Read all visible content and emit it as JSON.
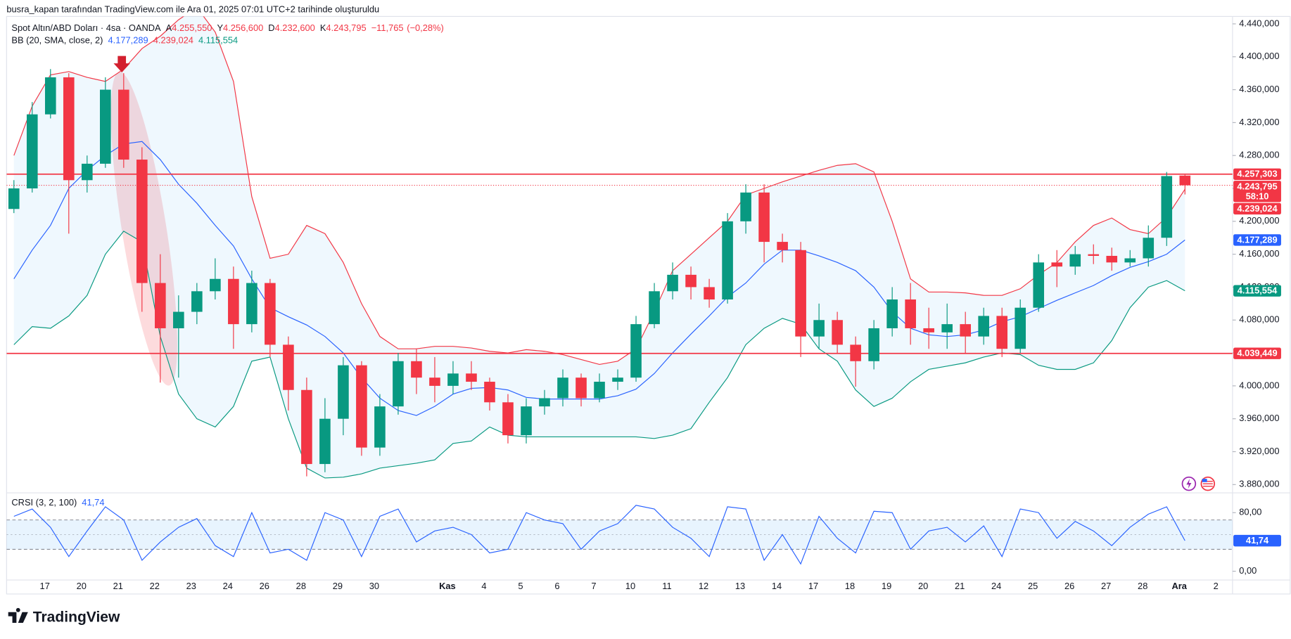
{
  "chart_data": {
    "type": "candlestick",
    "attribution": "busra_kapan tarafından TradingView.com ile Ara 01, 2025 07:01 UTC+2 tarihinde oluşturuldu",
    "title": "Spot Altın/ABD Doları · 4sa · OANDA",
    "ohlc_readout": [
      {
        "prefix": "A",
        "value": 4255.55,
        "label": "4.255,550"
      },
      {
        "prefix": "Y",
        "value": 4256.6,
        "label": "4.256,600"
      },
      {
        "prefix": "D",
        "value": 4232.6,
        "label": "4.232,600"
      },
      {
        "prefix": "K",
        "value": 4243.795,
        "label": "4.243,795"
      }
    ],
    "change": {
      "value": -11.765,
      "label": "−11,765"
    },
    "change_pct": {
      "value": -0.28,
      "label": "(−0,28%)"
    },
    "categories": [
      null,
      null,
      "17",
      null,
      "20",
      null,
      "21",
      null,
      "22",
      null,
      "23",
      null,
      "24",
      null,
      "26",
      null,
      "28",
      null,
      "29",
      null,
      "30",
      null,
      null,
      null,
      "Kas",
      null,
      "4",
      null,
      "5",
      null,
      "6",
      null,
      "7",
      null,
      "10",
      null,
      "11",
      null,
      "12",
      null,
      "13",
      null,
      "14",
      null,
      "17",
      null,
      "18",
      null,
      "19",
      null,
      "20",
      null,
      "21",
      null,
      "24",
      null,
      "25",
      null,
      "26",
      null,
      "27",
      null,
      "28",
      null,
      "Ara",
      null,
      "2"
    ],
    "open": [
      4215,
      4240,
      4330,
      4375,
      4250,
      4270,
      4360,
      4275,
      4125,
      4070,
      4090,
      4115,
      4130,
      4075,
      4125,
      4050,
      3995,
      3905,
      3960,
      4025,
      3925,
      3975,
      4030,
      4010,
      4000,
      4015,
      4005,
      3980,
      3940,
      3975,
      3985,
      4010,
      3985,
      4005,
      4010,
      4075,
      4115,
      4135,
      4120,
      4105,
      4200,
      4235,
      4175,
      4165,
      4060,
      4080,
      4050,
      4030,
      4070,
      4105,
      4070,
      4065,
      4075,
      4060,
      4085,
      4045,
      4095,
      4150,
      4145,
      4160,
      4158,
      4150,
      4155,
      4180,
      4255.55,
      null,
      null
    ],
    "high": [
      4250,
      4345,
      4385,
      4380,
      4280,
      4375,
      4380,
      4290,
      4160,
      4110,
      4125,
      4155,
      4145,
      4140,
      4130,
      4060,
      4010,
      3985,
      4035,
      4030,
      3990,
      4040,
      4045,
      4035,
      4030,
      4030,
      4010,
      3990,
      3985,
      3995,
      4020,
      4015,
      4015,
      4020,
      4085,
      4125,
      4150,
      4145,
      4130,
      4210,
      4245,
      4245,
      4185,
      4175,
      4100,
      4090,
      4060,
      4080,
      4120,
      4125,
      4095,
      4100,
      4090,
      4095,
      4095,
      4105,
      4160,
      4165,
      4170,
      4172,
      4168,
      4165,
      4195,
      4260,
      4256.6,
      null,
      null
    ],
    "low": [
      4210,
      4235,
      4325,
      4185,
      4235,
      4265,
      4265,
      4090,
      4004,
      4010,
      4075,
      4105,
      4045,
      4065,
      4035,
      3970,
      3890,
      3895,
      3940,
      3915,
      3915,
      3965,
      3990,
      3980,
      3990,
      3995,
      3970,
      3930,
      3930,
      3965,
      3975,
      3975,
      3980,
      3995,
      4005,
      4070,
      4105,
      4105,
      4095,
      4100,
      4185,
      4150,
      4150,
      4035,
      4045,
      4040,
      3999,
      4020,
      4060,
      4050,
      4045,
      4045,
      4040,
      4050,
      4035,
      4040,
      4090,
      4120,
      4135,
      4148,
      4140,
      4145,
      4145,
      4170,
      4232.6,
      null,
      null
    ],
    "close": [
      4240,
      4330,
      4375,
      4250,
      4270,
      4360,
      4275,
      4125,
      4070,
      4090,
      4115,
      4130,
      4075,
      4125,
      4050,
      3995,
      3905,
      3960,
      4025,
      3925,
      3975,
      4030,
      4010,
      4000,
      4015,
      4005,
      3980,
      3940,
      3975,
      3985,
      4010,
      3985,
      4005,
      4010,
      4075,
      4115,
      4135,
      4120,
      4105,
      4200,
      4235,
      4175,
      4165,
      4060,
      4080,
      4050,
      4030,
      4070,
      4105,
      4070,
      4065,
      4075,
      4060,
      4085,
      4045,
      4095,
      4150,
      4145,
      4160,
      4158,
      4150,
      4155,
      4180,
      4255,
      4243.795,
      null,
      null
    ],
    "up_color": "#089981",
    "down_color": "#f23645",
    "ylim": [
      3871,
      4449
    ],
    "yticks": [
      {
        "value": 4440,
        "label": "4.440,000"
      },
      {
        "value": 4400,
        "label": "4.400,000"
      },
      {
        "value": 4360,
        "label": "4.360,000"
      },
      {
        "value": 4320,
        "label": "4.320,000"
      },
      {
        "value": 4280,
        "label": "4.280,000"
      },
      {
        "value": 4240,
        "label": "4.240,000"
      },
      {
        "value": 4200,
        "label": "4.200,000"
      },
      {
        "value": 4160,
        "label": "4.160,000"
      },
      {
        "value": 4120,
        "label": "4.120,000"
      },
      {
        "value": 4080,
        "label": "4.080,000"
      },
      {
        "value": 4040,
        "label": "4.040,000"
      },
      {
        "value": 4000,
        "label": "4.000,000"
      },
      {
        "value": 3960,
        "label": "3.960,000"
      },
      {
        "value": 3920,
        "label": "3.920,000"
      },
      {
        "value": 3880,
        "label": "3.880,000"
      }
    ],
    "grid": false,
    "bollinger": {
      "title": "BB (20, SMA, close, 2)",
      "fill": "rgba(33,150,243,0.07)",
      "series": [
        {
          "color": "#2962ff",
          "readout": {
            "value": 4177.289,
            "label": "4.177,289"
          },
          "values": [
            4130,
            4165,
            4195,
            4240,
            4262,
            4280,
            4294,
            4297,
            4275,
            4245,
            4222,
            4195,
            4170,
            4130,
            4095,
            4084,
            4074,
            4060,
            4040,
            4010,
            3985,
            3970,
            3964,
            3975,
            3990,
            3997,
            3998,
            3995,
            3986,
            3984,
            3984,
            3984,
            3984,
            3988,
            3996,
            4015,
            4040,
            4063,
            4085,
            4108,
            4125,
            4148,
            4165,
            4165,
            4158,
            4150,
            4140,
            4120,
            4090,
            4070,
            4062,
            4060,
            4062,
            4068,
            4078,
            4084,
            4094,
            4104,
            4113,
            4122,
            4134,
            4144,
            4151,
            4160,
            4177.289,
            null,
            null
          ]
        },
        {
          "color": "#f23645",
          "readout": {
            "value": 4239.024,
            "label": "4.239,024"
          },
          "values": [
            4280,
            4340,
            4378,
            4382,
            4375,
            4370,
            4385,
            4410,
            4425,
            4445,
            4460,
            4430,
            4370,
            4230,
            4155,
            4160,
            4195,
            4185,
            4150,
            4100,
            4060,
            4045,
            4045,
            4048,
            4048,
            4046,
            4042,
            4040,
            4044,
            4042,
            4038,
            4032,
            4026,
            4030,
            4045,
            4090,
            4140,
            4160,
            4180,
            4200,
            4232,
            4240,
            4248,
            4255,
            4262,
            4268,
            4270,
            4260,
            4200,
            4130,
            4114,
            4114,
            4113,
            4110,
            4110,
            4118,
            4135,
            4150,
            4175,
            4195,
            4204,
            4190,
            4185,
            4205,
            4239.024,
            null,
            null
          ]
        },
        {
          "color": "#089981",
          "readout": {
            "value": 4115.554,
            "label": "4.115,554"
          },
          "values": [
            4050,
            4072,
            4070,
            4085,
            4110,
            4160,
            4188,
            4175,
            4060,
            3990,
            3960,
            3950,
            3975,
            4030,
            4035,
            3960,
            3900,
            3888,
            3889,
            3893,
            3900,
            3903,
            3906,
            3910,
            3930,
            3933,
            3950,
            3940,
            3938,
            3938,
            3938,
            3938,
            3938,
            3938,
            3938,
            3936,
            3940,
            3948,
            3980,
            4010,
            4050,
            4070,
            4082,
            4075,
            4045,
            4030,
            3995,
            3975,
            3985,
            4005,
            4020,
            4024,
            4028,
            4035,
            4040,
            4038,
            4025,
            4020,
            4020,
            4028,
            4055,
            4095,
            4120,
            4128,
            4115.554,
            null,
            null
          ]
        }
      ]
    },
    "hlines": [
      {
        "value": 4257.303,
        "label": "4.257,303",
        "color": "#f23645"
      },
      {
        "value": 4039.449,
        "label": "4.039,449",
        "color": "#f23645"
      }
    ],
    "last_price": {
      "value": 4243.795,
      "label": "4.243,795",
      "countdown": "58:10",
      "color": "#f23645"
    },
    "crsi": {
      "title": "CRSI (3, 2, 100)",
      "color": "#2962ff",
      "readout": {
        "value": 41.74,
        "label": "41,74"
      },
      "values": [
        75,
        85,
        60,
        20,
        55,
        88,
        70,
        15,
        40,
        60,
        72,
        35,
        20,
        80,
        25,
        30,
        15,
        80,
        70,
        20,
        75,
        85,
        40,
        55,
        60,
        50,
        25,
        30,
        80,
        70,
        65,
        30,
        55,
        65,
        90,
        85,
        60,
        45,
        20,
        88,
        85,
        15,
        50,
        10,
        75,
        45,
        25,
        82,
        80,
        30,
        55,
        60,
        40,
        62,
        20,
        85,
        80,
        45,
        68,
        55,
        35,
        60,
        78,
        88,
        41.74,
        null,
        null
      ],
      "ylim": [
        -12,
        106
      ],
      "yticks": [
        {
          "value": 80,
          "label": "80,00"
        },
        {
          "value": 0,
          "label": "0,00"
        }
      ],
      "bands": [
        30,
        70
      ],
      "midline": 50
    },
    "footer": "TradingView"
  }
}
